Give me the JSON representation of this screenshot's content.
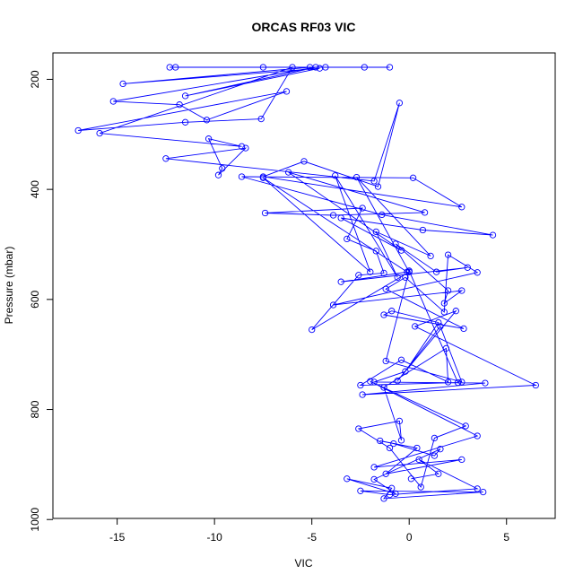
{
  "chart_data": {
    "type": "line",
    "title": "ORCAS RF03 VIC",
    "xlabel": "VIC",
    "ylabel": "Pressure (mbar)",
    "xlim": [
      -18.3,
      7.5
    ],
    "ylim": [
      152,
      998
    ],
    "y_reversed": true,
    "x_ticks": [
      -15,
      -10,
      -5,
      0,
      5
    ],
    "x_tick_labels": [
      "-15",
      "-10",
      "-5",
      "0",
      "5"
    ],
    "y_ticks": [
      200,
      400,
      600,
      800,
      1000
    ],
    "y_tick_labels": [
      "200",
      "400",
      "600",
      "800",
      "1000"
    ],
    "grid": false,
    "legend": "none",
    "marker": "open-circle",
    "color": "#0000ff",
    "series": [
      {
        "x": [
          -1.0,
          -12.3,
          -4.3,
          -12.0,
          -2.3,
          -7.5,
          -5.1,
          -14.7,
          -4.6,
          -11.5,
          -4.8,
          -15.2,
          -11.8,
          -10.4,
          -6.3,
          -17.0,
          -11.5,
          -7.6,
          -6.0,
          -15.9,
          -8.6,
          -10.3,
          -9.6,
          -9.8,
          -8.4,
          -12.5,
          -1.8,
          -0.5,
          -1.6,
          -5.4,
          -7.5,
          2.7,
          0.2,
          -8.6,
          -1.4,
          4.3,
          0.7,
          -3.5,
          -0.4,
          -6.2,
          0.8,
          -3.9,
          -7.4,
          -2.4,
          -3.2,
          -1.7,
          -1.3,
          -2.6,
          -5.0,
          0.0,
          -2.7,
          1.1,
          -1.7,
          -0.6,
          -3.8,
          -2.0,
          -7.5,
          -0.1,
          -3.5,
          3.0,
          1.4,
          -0.7,
          2.0,
          1.8,
          2.7,
          -3.9,
          3.5,
          2.0,
          1.8,
          -0.2,
          -1.2,
          2.8,
          -1.3,
          -0.9,
          1.5,
          -0.2,
          -1.8,
          3.9,
          -2.4,
          6.5,
          0.3,
          2.4,
          -0.6,
          1.6,
          2.7,
          -1.2,
          0.0,
          2.5,
          -2.5,
          -0.4,
          2.0,
          1.9,
          -1.3,
          -0.4,
          -0.5,
          -2.6,
          -1.0,
          0.6,
          1.3,
          2.9,
          -2.0,
          3.5,
          -1.8,
          2.7,
          -1.2,
          0.4,
          -1.5,
          -0.8,
          1.3,
          1.6,
          -1.8,
          -0.7,
          -3.2,
          -0.9,
          -1.3,
          3.8,
          -2.5,
          -1.0,
          3.5,
          0.5,
          1.5,
          0.1
        ],
        "y": [
          178,
          178,
          178,
          178,
          178,
          178,
          178,
          208,
          180,
          230,
          178,
          240,
          246,
          274,
          222,
          293,
          278,
          272,
          178,
          298,
          322,
          308,
          362,
          374,
          325,
          344,
          385,
          243,
          395,
          349,
          377,
          432,
          379,
          377,
          446,
          483,
          474,
          452,
          511,
          369,
          442,
          447,
          443,
          434,
          490,
          512,
          552,
          556,
          655,
          550,
          378,
          521,
          477,
          560,
          375,
          550,
          379,
          550,
          568,
          542,
          550,
          499,
          584,
          607,
          584,
          610,
          551,
          519,
          623,
          560,
          581,
          653,
          628,
          621,
          642,
          731,
          750,
          752,
          773,
          756,
          649,
          621,
          748,
          649,
          750,
          712,
          548,
          751,
          756,
          710,
          750,
          689,
          760,
          856,
          821,
          835,
          870,
          941,
          852,
          830,
          749,
          848,
          905,
          891,
          917,
          870,
          857,
          862,
          884,
          872,
          927,
          953,
          926,
          943,
          962,
          950,
          948,
          955,
          944,
          891,
          917,
          926
        ]
      }
    ]
  }
}
